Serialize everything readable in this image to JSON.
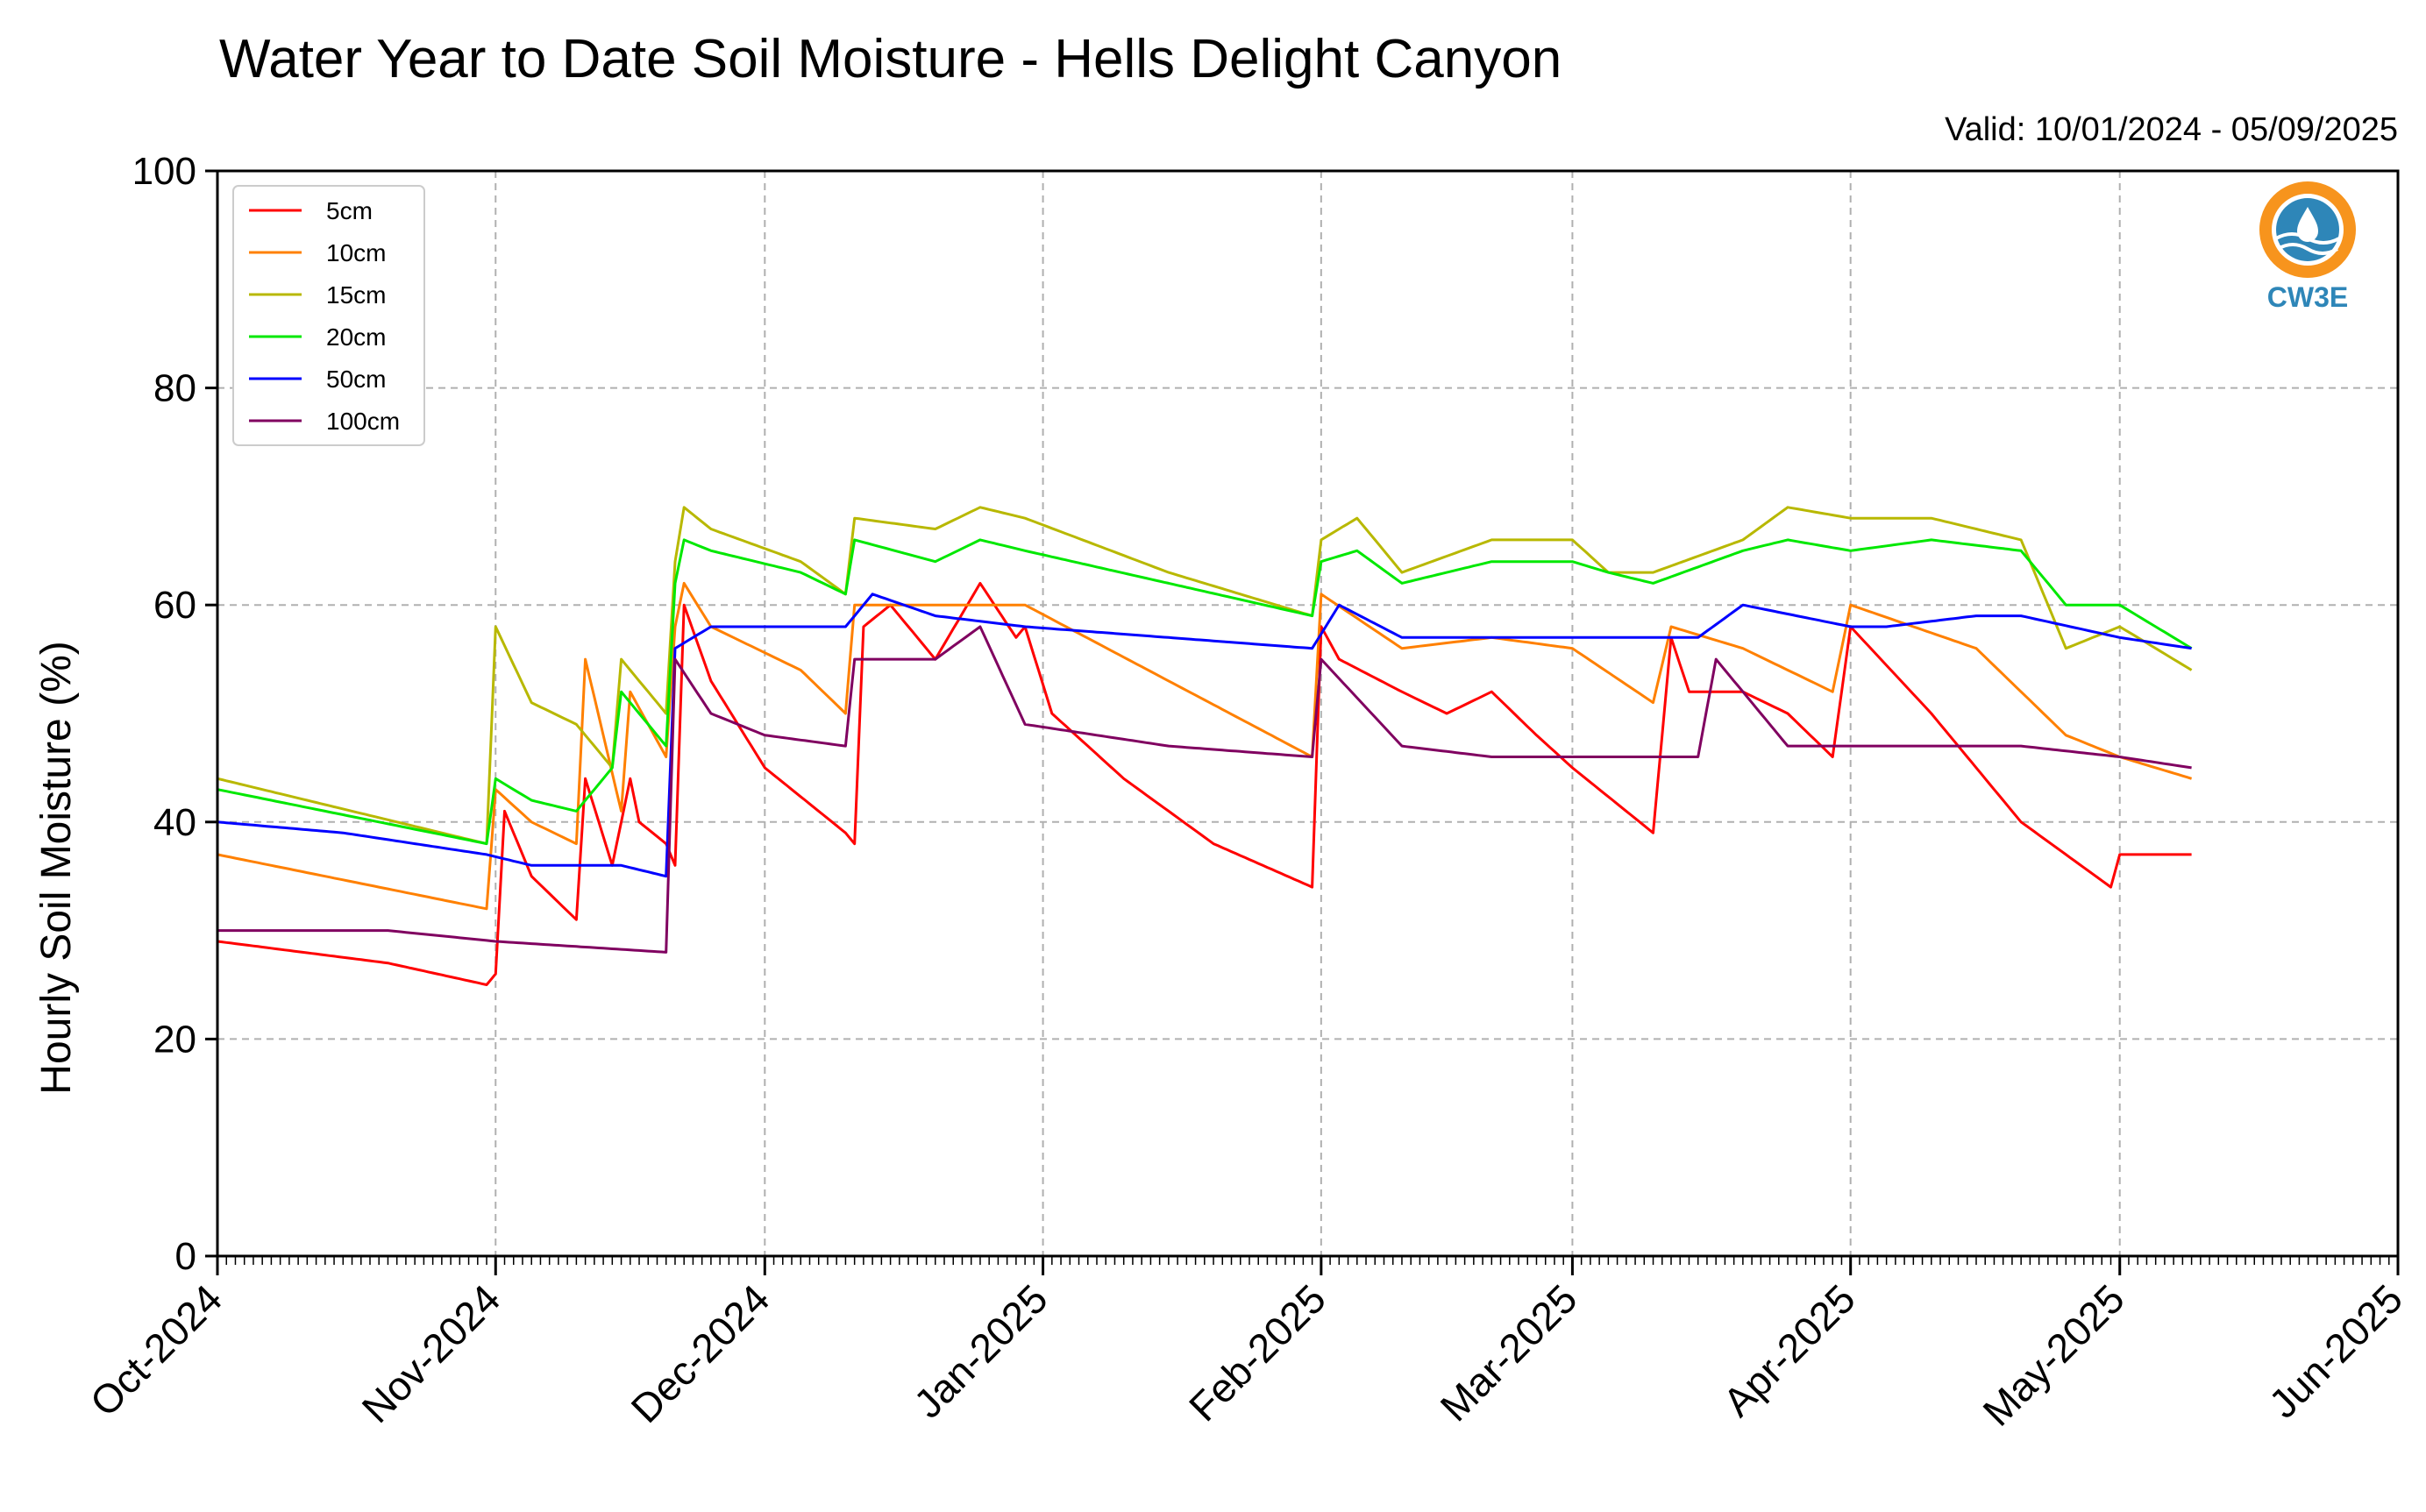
{
  "chart_data": {
    "type": "line",
    "title": "Water Year to Date Soil Moisture - Hells Delight Canyon",
    "subtitle": "Valid: 10/01/2024 - 05/09/2025",
    "xlabel": "",
    "ylabel": "Hourly Soil Moisture (%)",
    "ylim": [
      0,
      100
    ],
    "yticks": [
      0,
      20,
      40,
      60,
      80,
      100
    ],
    "xlim": [
      "2024-10-01",
      "2025-06-01"
    ],
    "xticks": [
      "Oct-2024",
      "Nov-2024",
      "Dec-2024",
      "Jan-2025",
      "Feb-2025",
      "Mar-2025",
      "Apr-2025",
      "May-2025",
      "Jun-2025"
    ],
    "grid": true,
    "legend": "top-left",
    "series": [
      {
        "name": "5cm",
        "color": "#ff0000",
        "x": [
          "2024-10-01",
          "2024-10-20",
          "2024-10-31",
          "2024-11-01",
          "2024-11-02",
          "2024-11-05",
          "2024-11-10",
          "2024-11-11",
          "2024-11-14",
          "2024-11-16",
          "2024-11-17",
          "2024-11-20",
          "2024-11-21",
          "2024-11-22",
          "2024-11-25",
          "2024-12-01",
          "2024-12-10",
          "2024-12-11",
          "2024-12-12",
          "2024-12-15",
          "2024-12-20",
          "2024-12-25",
          "2024-12-29",
          "2024-12-30",
          "2025-01-02",
          "2025-01-10",
          "2025-01-20",
          "2025-01-31",
          "2025-02-01",
          "2025-02-03",
          "2025-02-10",
          "2025-02-15",
          "2025-02-20",
          "2025-02-25",
          "2025-03-01",
          "2025-03-10",
          "2025-03-12",
          "2025-03-14",
          "2025-03-20",
          "2025-03-25",
          "2025-03-30",
          "2025-04-01",
          "2025-04-10",
          "2025-04-20",
          "2025-04-30",
          "2025-05-01",
          "2025-05-09"
        ],
        "y": [
          29,
          27,
          25,
          26,
          41,
          35,
          31,
          44,
          36,
          44,
          40,
          38,
          36,
          60,
          53,
          45,
          39,
          38,
          58,
          60,
          55,
          62,
          57,
          58,
          50,
          44,
          38,
          34,
          58,
          55,
          52,
          50,
          52,
          48,
          45,
          39,
          57,
          52,
          52,
          50,
          46,
          58,
          50,
          40,
          34,
          37,
          37
        ]
      },
      {
        "name": "10cm",
        "color": "#ff8000",
        "x": [
          "2024-10-01",
          "2024-10-31",
          "2024-11-01",
          "2024-11-05",
          "2024-11-10",
          "2024-11-11",
          "2024-11-15",
          "2024-11-16",
          "2024-11-20",
          "2024-11-21",
          "2024-11-22",
          "2024-11-25",
          "2024-12-05",
          "2024-12-10",
          "2024-12-11",
          "2024-12-20",
          "2024-12-30",
          "2025-01-15",
          "2025-01-31",
          "2025-02-01",
          "2025-02-10",
          "2025-02-20",
          "2025-03-01",
          "2025-03-10",
          "2025-03-12",
          "2025-03-20",
          "2025-03-30",
          "2025-04-01",
          "2025-04-15",
          "2025-04-25",
          "2025-05-01",
          "2025-05-09"
        ],
        "y": [
          37,
          32,
          43,
          40,
          38,
          55,
          41,
          52,
          46,
          58,
          62,
          58,
          54,
          50,
          60,
          60,
          60,
          53,
          46,
          61,
          56,
          57,
          56,
          51,
          58,
          56,
          52,
          60,
          56,
          48,
          46,
          44
        ]
      },
      {
        "name": "15cm",
        "color": "#b8b800",
        "x": [
          "2024-10-01",
          "2024-10-31",
          "2024-11-01",
          "2024-11-05",
          "2024-11-10",
          "2024-11-14",
          "2024-11-15",
          "2024-11-20",
          "2024-11-21",
          "2024-11-22",
          "2024-11-25",
          "2024-12-05",
          "2024-12-10",
          "2024-12-11",
          "2024-12-20",
          "2024-12-25",
          "2024-12-30",
          "2025-01-15",
          "2025-01-31",
          "2025-02-01",
          "2025-02-05",
          "2025-02-10",
          "2025-02-20",
          "2025-03-01",
          "2025-03-05",
          "2025-03-10",
          "2025-03-20",
          "2025-03-25",
          "2025-04-01",
          "2025-04-10",
          "2025-04-20",
          "2025-04-25",
          "2025-05-01",
          "2025-05-09"
        ],
        "y": [
          44,
          38,
          58,
          51,
          49,
          45,
          55,
          50,
          64,
          69,
          67,
          64,
          61,
          68,
          67,
          69,
          68,
          63,
          59,
          66,
          68,
          63,
          66,
          66,
          63,
          63,
          66,
          69,
          68,
          68,
          66,
          56,
          58,
          54
        ]
      },
      {
        "name": "20cm",
        "color": "#00e800",
        "x": [
          "2024-10-01",
          "2024-10-31",
          "2024-11-01",
          "2024-11-05",
          "2024-11-10",
          "2024-11-14",
          "2024-11-15",
          "2024-11-20",
          "2024-11-21",
          "2024-11-22",
          "2024-11-25",
          "2024-12-05",
          "2024-12-10",
          "2024-12-11",
          "2024-12-20",
          "2024-12-25",
          "2024-12-30",
          "2025-01-15",
          "2025-01-31",
          "2025-02-01",
          "2025-02-05",
          "2025-02-10",
          "2025-02-20",
          "2025-03-01",
          "2025-03-05",
          "2025-03-10",
          "2025-03-20",
          "2025-03-25",
          "2025-04-01",
          "2025-04-10",
          "2025-04-20",
          "2025-04-25",
          "2025-05-01",
          "2025-05-09"
        ],
        "y": [
          43,
          38,
          44,
          42,
          41,
          45,
          52,
          47,
          62,
          66,
          65,
          63,
          61,
          66,
          64,
          66,
          65,
          62,
          59,
          64,
          65,
          62,
          64,
          64,
          63,
          62,
          65,
          66,
          65,
          66,
          65,
          60,
          60,
          56
        ]
      },
      {
        "name": "50cm",
        "color": "#0000ff",
        "x": [
          "2024-10-01",
          "2024-10-15",
          "2024-10-31",
          "2024-11-05",
          "2024-11-15",
          "2024-11-20",
          "2024-11-21",
          "2024-11-25",
          "2024-12-01",
          "2024-12-10",
          "2024-12-13",
          "2024-12-20",
          "2024-12-30",
          "2025-01-15",
          "2025-01-31",
          "2025-02-03",
          "2025-02-10",
          "2025-02-20",
          "2025-03-01",
          "2025-03-15",
          "2025-03-20",
          "2025-04-01",
          "2025-04-05",
          "2025-04-15",
          "2025-04-20",
          "2025-05-01",
          "2025-05-09"
        ],
        "y": [
          40,
          39,
          37,
          36,
          36,
          35,
          56,
          58,
          58,
          58,
          61,
          59,
          58,
          57,
          56,
          60,
          57,
          57,
          57,
          57,
          60,
          58,
          58,
          59,
          59,
          57,
          56
        ]
      },
      {
        "name": "100cm",
        "color": "#800060",
        "x": [
          "2024-10-01",
          "2024-10-20",
          "2024-11-01",
          "2024-11-20",
          "2024-11-21",
          "2024-11-25",
          "2024-12-01",
          "2024-12-10",
          "2024-12-11",
          "2024-12-20",
          "2024-12-25",
          "2024-12-30",
          "2025-01-15",
          "2025-01-31",
          "2025-02-01",
          "2025-02-10",
          "2025-02-20",
          "2025-03-01",
          "2025-03-15",
          "2025-03-17",
          "2025-03-25",
          "2025-04-01",
          "2025-04-05",
          "2025-04-20",
          "2025-05-01",
          "2025-05-09"
        ],
        "y": [
          30,
          30,
          29,
          28,
          55,
          50,
          48,
          47,
          55,
          55,
          58,
          49,
          47,
          46,
          55,
          47,
          46,
          46,
          46,
          55,
          47,
          47,
          47,
          47,
          46,
          45
        ]
      }
    ]
  },
  "logo": {
    "text": "CW3E",
    "color": "#2e86b8",
    "accent": "#f7941d"
  }
}
